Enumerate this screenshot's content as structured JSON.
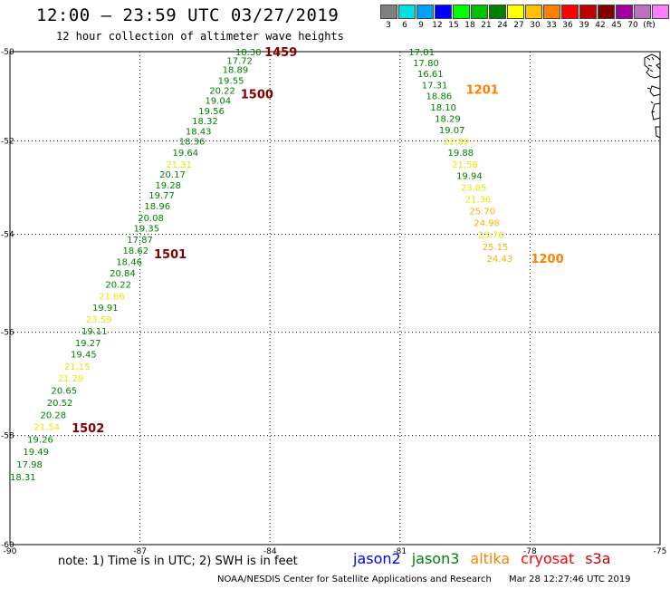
{
  "title": "12:00 – 23:59 UTC 03/27/2019",
  "subtitle": "12 hour collection of altimeter wave heights",
  "legend": {
    "colors": [
      "#808080",
      "#00e0e0",
      "#00a0ff",
      "#0000ff",
      "#00ff00",
      "#00c000",
      "#008000",
      "#ffff00",
      "#ffc000",
      "#ff8000",
      "#ff0000",
      "#c00000",
      "#800000",
      "#a000a0",
      "#c070c0",
      "#ff80ff",
      "#000000"
    ],
    "labels": [
      "3",
      "6",
      "9",
      "12",
      "15",
      "18",
      "21",
      "24",
      "27",
      "30",
      "33",
      "36",
      "39",
      "42",
      "45",
      "70",
      "(ft)"
    ]
  },
  "axes": {
    "y_ticks": [
      "-50",
      "-52",
      "-54",
      "-56",
      "-58",
      "-60"
    ],
    "x_ticks": [
      "-90",
      "-87",
      "-84",
      "-81",
      "-78",
      "-75"
    ]
  },
  "tracks": [
    {
      "points": [
        {
          "lon": -84.5,
          "lat": -50.0,
          "v": "18.30"
        },
        {
          "lon": -84.7,
          "lat": -50.2,
          "v": "17.72"
        },
        {
          "lon": -84.8,
          "lat": -50.4,
          "v": "18.89"
        },
        {
          "lon": -84.9,
          "lat": -50.65,
          "v": "19.55"
        },
        {
          "lon": -85.1,
          "lat": -50.87,
          "v": "20.22"
        },
        {
          "lon": -85.2,
          "lat": -51.1,
          "v": "19.04"
        },
        {
          "lon": -85.35,
          "lat": -51.33,
          "v": "19.56"
        },
        {
          "lon": -85.5,
          "lat": -51.55,
          "v": "18.32"
        },
        {
          "lon": -85.65,
          "lat": -51.78,
          "v": "18.43"
        },
        {
          "lon": -85.8,
          "lat": -52.0,
          "v": "18.36"
        },
        {
          "lon": -85.95,
          "lat": -52.25,
          "v": "19.64"
        },
        {
          "lon": -86.1,
          "lat": -52.5,
          "v": "21.31"
        },
        {
          "lon": -86.25,
          "lat": -52.72,
          "v": "20.17"
        },
        {
          "lon": -86.35,
          "lat": -52.95,
          "v": "19.28"
        },
        {
          "lon": -86.5,
          "lat": -53.17,
          "v": "19.77"
        },
        {
          "lon": -86.6,
          "lat": -53.4,
          "v": "18.96"
        },
        {
          "lon": -86.75,
          "lat": -53.65,
          "v": "20.08"
        },
        {
          "lon": -86.85,
          "lat": -53.87,
          "v": "19.35"
        },
        {
          "lon": -87.0,
          "lat": -54.1,
          "v": "17.87"
        },
        {
          "lon": -87.1,
          "lat": -54.33,
          "v": "18.62"
        },
        {
          "lon": -87.25,
          "lat": -54.56,
          "v": "18.46"
        },
        {
          "lon": -87.4,
          "lat": -54.8,
          "v": "20.84"
        },
        {
          "lon": -87.5,
          "lat": -55.03,
          "v": "20.22"
        },
        {
          "lon": -87.65,
          "lat": -55.27,
          "v": "21.66"
        },
        {
          "lon": -87.8,
          "lat": -55.5,
          "v": "19.91"
        },
        {
          "lon": -87.95,
          "lat": -55.73,
          "v": "23.59"
        },
        {
          "lon": -88.05,
          "lat": -55.97,
          "v": "19.11"
        },
        {
          "lon": -88.2,
          "lat": -56.2,
          "v": "19.27"
        },
        {
          "lon": -88.3,
          "lat": -56.43,
          "v": "19.45"
        },
        {
          "lon": -88.45,
          "lat": -56.67,
          "v": "21.15"
        },
        {
          "lon": -88.6,
          "lat": -56.9,
          "v": "21.29"
        },
        {
          "lon": -88.75,
          "lat": -57.13,
          "v": "20.65"
        },
        {
          "lon": -88.85,
          "lat": -57.37,
          "v": "20.52"
        },
        {
          "lon": -89.0,
          "lat": -57.6,
          "v": "20.28"
        },
        {
          "lon": -89.15,
          "lat": -57.83,
          "v": "21.54"
        },
        {
          "lon": -89.3,
          "lat": -58.07,
          "v": "19.26"
        },
        {
          "lon": -89.4,
          "lat": -58.3,
          "v": "19.49"
        },
        {
          "lon": -89.55,
          "lat": -58.53,
          "v": "17.98"
        },
        {
          "lon": -89.7,
          "lat": -58.77,
          "v": "18.31"
        }
      ],
      "times": [
        {
          "lon": -83.75,
          "lat": -50.0,
          "t": "1459",
          "color": "#800000"
        },
        {
          "lon": -84.3,
          "lat": -50.95,
          "t": "1500",
          "color": "#800000"
        },
        {
          "lon": -86.3,
          "lat": -54.4,
          "t": "1501",
          "color": "#800000"
        },
        {
          "lon": -88.2,
          "lat": -57.85,
          "t": "1502",
          "color": "#800000"
        }
      ]
    },
    {
      "points": [
        {
          "lon": -80.5,
          "lat": -50.0,
          "v": "17.81"
        },
        {
          "lon": -80.4,
          "lat": -50.25,
          "v": "17.80"
        },
        {
          "lon": -80.3,
          "lat": -50.5,
          "v": "16.61"
        },
        {
          "lon": -80.2,
          "lat": -50.75,
          "v": "17.31"
        },
        {
          "lon": -80.1,
          "lat": -51.0,
          "v": "18.86"
        },
        {
          "lon": -80.0,
          "lat": -51.25,
          "v": "18.10"
        },
        {
          "lon": -79.9,
          "lat": -51.5,
          "v": "18.29"
        },
        {
          "lon": -79.8,
          "lat": -51.75,
          "v": "19.07"
        },
        {
          "lon": -79.7,
          "lat": -52.0,
          "v": "22.89"
        },
        {
          "lon": -79.6,
          "lat": -52.25,
          "v": "19.88"
        },
        {
          "lon": -79.5,
          "lat": -52.5,
          "v": "21.58"
        },
        {
          "lon": -79.4,
          "lat": -52.75,
          "v": "19.94"
        },
        {
          "lon": -79.3,
          "lat": -53.0,
          "v": "23.85"
        },
        {
          "lon": -79.2,
          "lat": -53.25,
          "v": "21.36"
        },
        {
          "lon": -79.1,
          "lat": -53.5,
          "v": "25.70"
        },
        {
          "lon": -79.0,
          "lat": -53.75,
          "v": "24.98"
        },
        {
          "lon": -78.9,
          "lat": -54.0,
          "v": "23.76"
        },
        {
          "lon": -78.8,
          "lat": -54.25,
          "v": "25.15"
        },
        {
          "lon": -78.7,
          "lat": -54.5,
          "v": "24.43"
        }
      ],
      "times": [
        {
          "lon": -79.1,
          "lat": -50.85,
          "t": "1201",
          "color": "#ff8000"
        },
        {
          "lon": -77.6,
          "lat": -54.5,
          "t": "1200",
          "color": "#ff8000"
        }
      ]
    }
  ],
  "note": "note: 1) Time is in UTC; 2) SWH is in feet",
  "satellites": [
    {
      "name": "jason2",
      "color": "#0000ff"
    },
    {
      "name": "jason3",
      "color": "#008000"
    },
    {
      "name": "altika",
      "color": "#ff8000"
    },
    {
      "name": "cryosat",
      "color": "#ff0000"
    },
    {
      "name": "s3a",
      "color": "#c00000"
    }
  ],
  "footer": {
    "center": "NOAA/NESDIS Center for Satellite Applications and Research",
    "timestamp": "Mar 28 12:27:46 UTC 2019"
  }
}
